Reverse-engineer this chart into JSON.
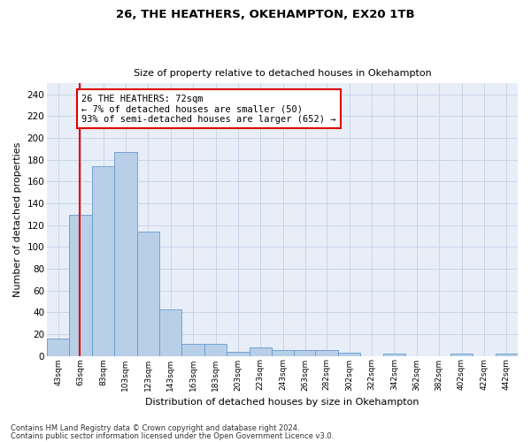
{
  "title1": "26, THE HEATHERS, OKEHAMPTON, EX20 1TB",
  "title2": "Size of property relative to detached houses in Okehampton",
  "xlabel": "Distribution of detached houses by size in Okehampton",
  "ylabel": "Number of detached properties",
  "bin_labels": [
    "43sqm",
    "63sqm",
    "83sqm",
    "103sqm",
    "123sqm",
    "143sqm",
    "163sqm",
    "183sqm",
    "203sqm",
    "223sqm",
    "243sqm",
    "263sqm",
    "282sqm",
    "302sqm",
    "322sqm",
    "342sqm",
    "362sqm",
    "382sqm",
    "402sqm",
    "422sqm",
    "442sqm"
  ],
  "bin_starts": [
    43,
    63,
    83,
    103,
    123,
    143,
    163,
    183,
    203,
    223,
    243,
    263,
    282,
    302,
    322,
    342,
    362,
    382,
    402,
    422,
    442
  ],
  "bin_width": 20,
  "values": [
    16,
    129,
    174,
    187,
    114,
    43,
    11,
    11,
    4,
    8,
    5,
    5,
    5,
    3,
    0,
    2,
    0,
    0,
    2,
    0,
    2
  ],
  "bar_color": "#b8cfe8",
  "bar_edge_color": "#6699cc",
  "property_size": 72,
  "property_line_color": "#dd0000",
  "annotation_text": "26 THE HEATHERS: 72sqm\n← 7% of detached houses are smaller (50)\n93% of semi-detached houses are larger (652) →",
  "annotation_box_facecolor": "#ffffff",
  "annotation_box_edgecolor": "#dd0000",
  "ylim": [
    0,
    250
  ],
  "yticks": [
    0,
    20,
    40,
    60,
    80,
    100,
    120,
    140,
    160,
    180,
    200,
    220,
    240
  ],
  "grid_color": "#c8d4e8",
  "background_color": "#e8eef8",
  "footnote1": "Contains HM Land Registry data © Crown copyright and database right 2024.",
  "footnote2": "Contains public sector information licensed under the Open Government Licence v3.0."
}
